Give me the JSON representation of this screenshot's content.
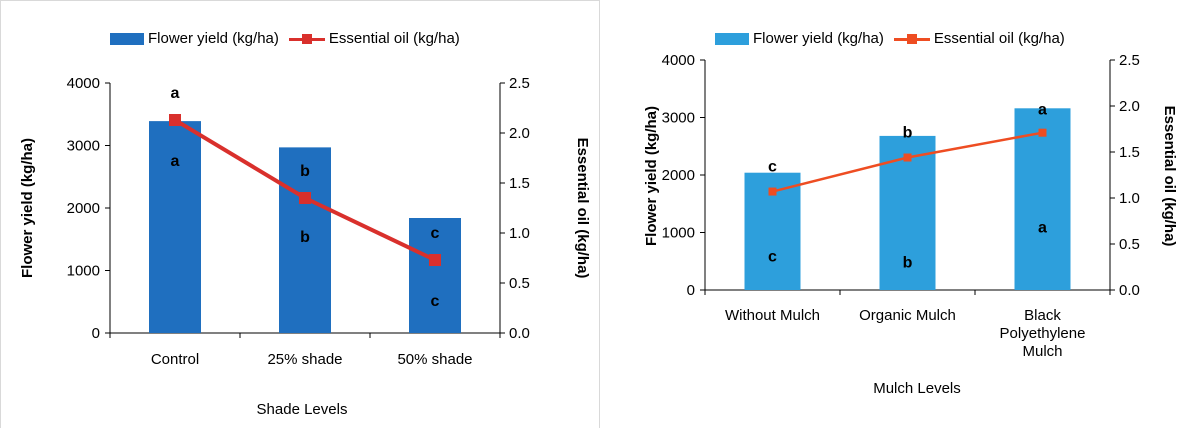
{
  "chart_data": [
    {
      "type": "bar",
      "categories": [
        "Control",
        "25% shade",
        "50% shade"
      ],
      "series": [
        {
          "name": "Flower yield (kg/ha)",
          "type": "bar",
          "axis": "left",
          "values": [
            3390,
            2970,
            1840
          ],
          "labels": [
            "a",
            "b",
            "c"
          ]
        },
        {
          "name": "Essential  oil (kg/ha)",
          "type": "line",
          "axis": "right",
          "values": [
            2.13,
            1.35,
            0.73
          ],
          "labels": [
            "a",
            "b",
            "c"
          ]
        }
      ],
      "xlabel": "Shade Levels",
      "ylabel": "Flower yield (kg/ha)",
      "y2label": "Essential oil (kg/ha)",
      "ylim": [
        0,
        4000
      ],
      "y2lim": [
        0,
        2.5
      ],
      "yticks": [
        "0",
        "1000",
        "2000",
        "3000",
        "4000"
      ],
      "y2ticks": [
        "0.0",
        "0.5",
        "1.0",
        "1.5",
        "2.0",
        "2.5"
      ],
      "legend_position": "top",
      "colors": {
        "bar": "#1f6fbf",
        "line": "#d9302c"
      }
    },
    {
      "type": "bar",
      "categories": [
        "Without Mulch",
        "Organic Mulch",
        "Black Polyethylene Mulch"
      ],
      "category_lines": [
        [
          "Without Mulch"
        ],
        [
          "Organic Mulch"
        ],
        [
          "Black",
          "Polyethylene",
          "Mulch"
        ]
      ],
      "series": [
        {
          "name": "Flower yield (kg/ha)",
          "type": "bar",
          "axis": "left",
          "values": [
            2040,
            2680,
            3160
          ],
          "labels": [
            "c",
            "b",
            "a"
          ]
        },
        {
          "name": "Essential  oil  (kg/ha)",
          "type": "line",
          "axis": "right",
          "values": [
            1.07,
            1.44,
            1.71
          ],
          "labels": [
            "c",
            "b",
            "a"
          ]
        }
      ],
      "xlabel": "Mulch Levels",
      "ylabel": "Flower yield (kg/ha)",
      "y2label": "Essential  oil  (kg/ha)",
      "ylim": [
        0,
        4000
      ],
      "y2lim": [
        0,
        2.5
      ],
      "yticks": [
        "0",
        "1000",
        "2000",
        "3000",
        "4000"
      ],
      "y2ticks": [
        "0.0",
        "0.5",
        "1.0",
        "1.5",
        "2.0",
        "2.5"
      ],
      "legend_position": "top",
      "colors": {
        "bar": "#2d9fdc",
        "line": "#ee4d22"
      }
    }
  ]
}
